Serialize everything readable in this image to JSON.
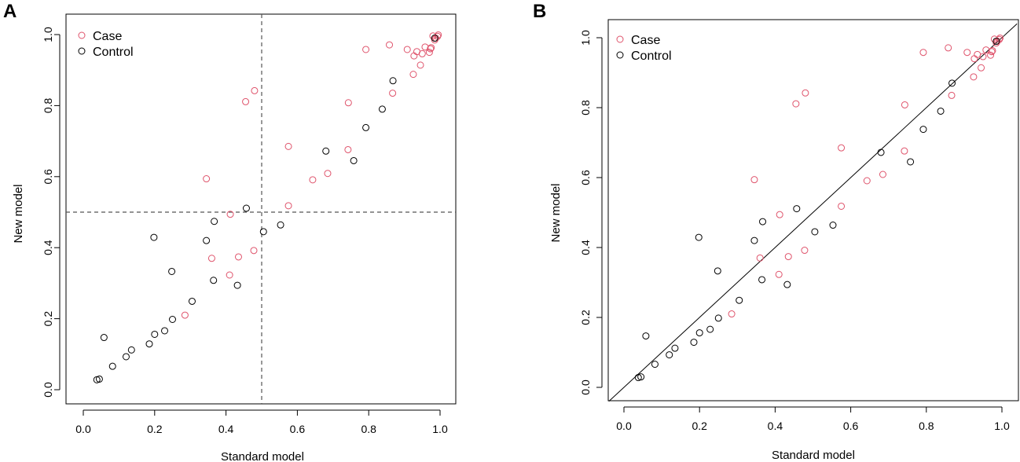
{
  "colors": {
    "case": "#DF536B",
    "control": "#000000",
    "reference": "#555555"
  },
  "chart_data": [
    {
      "panel": "A",
      "type": "scatter",
      "xlabel": "Standard model",
      "ylabel": "New model",
      "xlim": [
        0,
        1
      ],
      "ylim": [
        0,
        1
      ],
      "xticks": [
        "0.0",
        "0.2",
        "0.4",
        "0.6",
        "0.8",
        "1.0"
      ],
      "yticks": [
        "0.0",
        "0.2",
        "0.4",
        "0.6",
        "0.8",
        "1.0"
      ],
      "legend": {
        "position": "top-left",
        "entries": [
          "Case",
          "Control"
        ]
      },
      "reference": {
        "type": "crosshair",
        "x": 0.5,
        "y": 0.5,
        "style": "dashed"
      },
      "series": [
        {
          "name": "Case",
          "points": [
            [
              0.285,
              0.21
            ],
            [
              0.345,
              0.594
            ],
            [
              0.36,
              0.37
            ],
            [
              0.41,
              0.323
            ],
            [
              0.412,
              0.494
            ],
            [
              0.435,
              0.374
            ],
            [
              0.455,
              0.811
            ],
            [
              0.478,
              0.392
            ],
            [
              0.48,
              0.842
            ],
            [
              0.575,
              0.685
            ],
            [
              0.575,
              0.518
            ],
            [
              0.643,
              0.591
            ],
            [
              0.685,
              0.609
            ],
            [
              0.742,
              0.676
            ],
            [
              0.743,
              0.808
            ],
            [
              0.792,
              0.958
            ],
            [
              0.858,
              0.971
            ],
            [
              0.867,
              0.835
            ],
            [
              0.908,
              0.958
            ],
            [
              0.925,
              0.888
            ],
            [
              0.927,
              0.94
            ],
            [
              0.935,
              0.952
            ],
            [
              0.945,
              0.914
            ],
            [
              0.95,
              0.946
            ],
            [
              0.958,
              0.965
            ],
            [
              0.97,
              0.95
            ],
            [
              0.973,
              0.96
            ],
            [
              0.975,
              0.963
            ],
            [
              0.98,
              0.996
            ],
            [
              0.985,
              0.985
            ],
            [
              0.988,
              0.99
            ],
            [
              0.993,
              0.995
            ],
            [
              0.995,
              0.999
            ]
          ]
        },
        {
          "name": "Control",
          "points": [
            [
              0.038,
              0.028
            ],
            [
              0.045,
              0.03
            ],
            [
              0.058,
              0.147
            ],
            [
              0.082,
              0.066
            ],
            [
              0.12,
              0.093
            ],
            [
              0.135,
              0.112
            ],
            [
              0.185,
              0.129
            ],
            [
              0.198,
              0.429
            ],
            [
              0.2,
              0.156
            ],
            [
              0.228,
              0.166
            ],
            [
              0.248,
              0.333
            ],
            [
              0.25,
              0.198
            ],
            [
              0.305,
              0.249
            ],
            [
              0.345,
              0.42
            ],
            [
              0.365,
              0.308
            ],
            [
              0.367,
              0.474
            ],
            [
              0.432,
              0.294
            ],
            [
              0.457,
              0.511
            ],
            [
              0.505,
              0.445
            ],
            [
              0.553,
              0.464
            ],
            [
              0.68,
              0.672
            ],
            [
              0.758,
              0.645
            ],
            [
              0.792,
              0.738
            ],
            [
              0.838,
              0.79
            ],
            [
              0.868,
              0.87
            ],
            [
              0.985,
              0.99
            ]
          ]
        }
      ]
    },
    {
      "panel": "B",
      "type": "scatter",
      "xlabel": "Standard model",
      "ylabel": "New model",
      "xlim": [
        0,
        1
      ],
      "ylim": [
        0,
        1
      ],
      "xticks": [
        "0.0",
        "0.2",
        "0.4",
        "0.6",
        "0.8",
        "1.0"
      ],
      "yticks": [
        "0.0",
        "0.2",
        "0.4",
        "0.6",
        "0.8",
        "1.0"
      ],
      "legend": {
        "position": "top-left",
        "entries": [
          "Case",
          "Control"
        ]
      },
      "reference": {
        "type": "identity-line",
        "from": [
          -0.04,
          -0.04
        ],
        "to": [
          1.04,
          1.04
        ],
        "style": "solid"
      },
      "series": [
        {
          "name": "Case",
          "points": [
            [
              0.285,
              0.21
            ],
            [
              0.345,
              0.594
            ],
            [
              0.36,
              0.37
            ],
            [
              0.41,
              0.323
            ],
            [
              0.412,
              0.494
            ],
            [
              0.435,
              0.374
            ],
            [
              0.455,
              0.811
            ],
            [
              0.478,
              0.392
            ],
            [
              0.48,
              0.842
            ],
            [
              0.575,
              0.685
            ],
            [
              0.575,
              0.518
            ],
            [
              0.643,
              0.591
            ],
            [
              0.685,
              0.609
            ],
            [
              0.742,
              0.676
            ],
            [
              0.743,
              0.808
            ],
            [
              0.792,
              0.958
            ],
            [
              0.858,
              0.971
            ],
            [
              0.867,
              0.835
            ],
            [
              0.908,
              0.958
            ],
            [
              0.925,
              0.888
            ],
            [
              0.927,
              0.94
            ],
            [
              0.935,
              0.952
            ],
            [
              0.945,
              0.914
            ],
            [
              0.95,
              0.946
            ],
            [
              0.958,
              0.965
            ],
            [
              0.97,
              0.95
            ],
            [
              0.973,
              0.96
            ],
            [
              0.975,
              0.963
            ],
            [
              0.98,
              0.996
            ],
            [
              0.985,
              0.985
            ],
            [
              0.988,
              0.99
            ],
            [
              0.993,
              0.995
            ],
            [
              0.995,
              0.999
            ]
          ]
        },
        {
          "name": "Control",
          "points": [
            [
              0.038,
              0.028
            ],
            [
              0.045,
              0.03
            ],
            [
              0.058,
              0.147
            ],
            [
              0.082,
              0.066
            ],
            [
              0.12,
              0.093
            ],
            [
              0.135,
              0.112
            ],
            [
              0.185,
              0.129
            ],
            [
              0.198,
              0.429
            ],
            [
              0.2,
              0.156
            ],
            [
              0.228,
              0.166
            ],
            [
              0.248,
              0.333
            ],
            [
              0.25,
              0.198
            ],
            [
              0.305,
              0.249
            ],
            [
              0.345,
              0.42
            ],
            [
              0.365,
              0.308
            ],
            [
              0.367,
              0.474
            ],
            [
              0.432,
              0.294
            ],
            [
              0.457,
              0.511
            ],
            [
              0.505,
              0.445
            ],
            [
              0.553,
              0.464
            ],
            [
              0.68,
              0.672
            ],
            [
              0.758,
              0.645
            ],
            [
              0.792,
              0.738
            ],
            [
              0.838,
              0.79
            ],
            [
              0.868,
              0.87
            ],
            [
              0.985,
              0.99
            ]
          ]
        }
      ]
    }
  ]
}
